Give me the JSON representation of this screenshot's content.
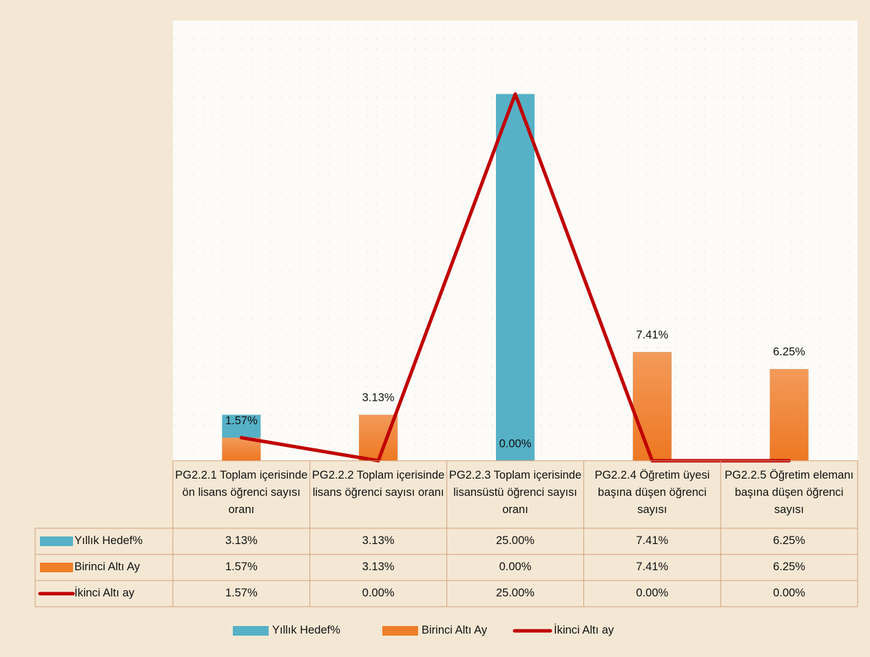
{
  "chart_data": {
    "type": "bar-line",
    "categories": [
      "PG2.2.1 Toplam içerisinde ön lisans öğrenci sayısı oranı",
      "PG2.2.2  Toplam içerisinde lisans öğrenci sayısı oranı",
      "PG2.2.3 Toplam içerisinde lisansüstü öğrenci sayısı oranı",
      "PG2.2.4  Öğretim üyesi başına düşen öğrenci sayısı",
      "PG2.2.5 Öğretim elemanı başına düşen öğrenci sayısı"
    ],
    "series": [
      {
        "name": "Yıllık Hedef%",
        "type": "bar",
        "color": "#56b1c6",
        "values": [
          3.13,
          3.13,
          25,
          7.41,
          6.25
        ],
        "value_labels": [
          "3.13%",
          "3.13%",
          "25.00%",
          "7.41%",
          "6.25%"
        ]
      },
      {
        "name": "Birinci Altı Ay",
        "type": "bar",
        "color": "#f07f2a",
        "values": [
          1.57,
          3.13,
          0,
          7.41,
          6.25
        ],
        "value_labels": [
          "1.57%",
          "3.13%",
          "0.00%",
          "7.41%",
          "6.25%"
        ]
      },
      {
        "name": "İkinci Altı ay",
        "type": "line",
        "color": "#c00000",
        "values": [
          1.57,
          0,
          25,
          0,
          0
        ],
        "value_labels": [
          "1.57%",
          "0.00%",
          "25.00%",
          "0.00%",
          "0.00%"
        ]
      }
    ],
    "ylim": [
      0,
      30
    ],
    "grid": true,
    "legend": "bottom"
  }
}
